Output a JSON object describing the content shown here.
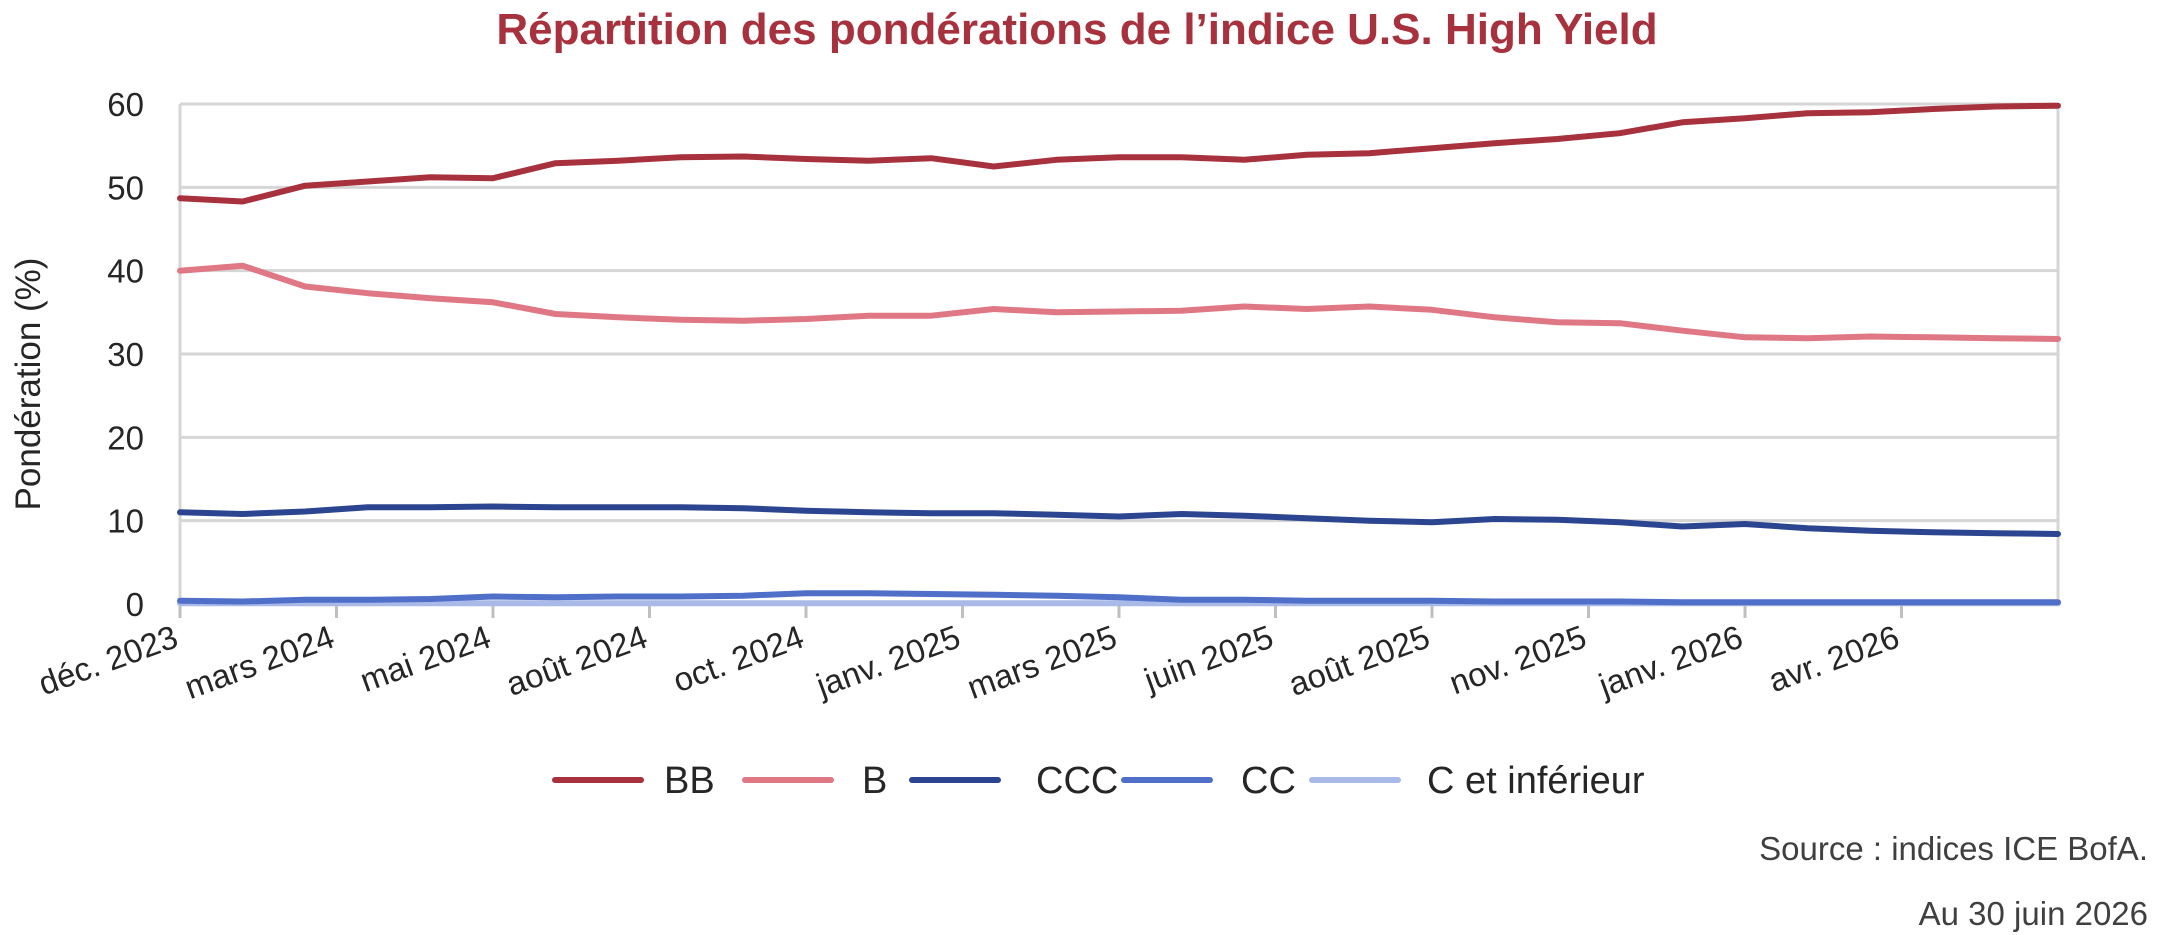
{
  "chart_data": {
    "type": "line",
    "title": "Répartition des pondérations de l’indice U.S. High Yield",
    "ylabel": "Pondération (%)",
    "xlabel": "",
    "ylim": [
      0,
      60
    ],
    "yticks": [
      "0",
      "10",
      "20",
      "30",
      "40",
      "50",
      "60"
    ],
    "x_tick_labels": [
      "déc. 2023",
      "mars 2024",
      "mai 2024",
      "août 2024",
      "oct. 2024",
      "janv. 2025",
      "mars 2025",
      "juin 2025",
      "août 2025",
      "nov. 2025",
      "janv. 2026",
      "avr. 2026"
    ],
    "x": [
      "2023-12",
      "2024-01",
      "2024-02",
      "2024-03",
      "2024-04",
      "2024-05",
      "2024-06",
      "2024-07",
      "2024-08",
      "2024-09",
      "2024-10",
      "2024-11",
      "2024-12",
      "2025-01",
      "2025-02",
      "2025-03",
      "2025-04",
      "2025-05",
      "2025-06",
      "2025-07",
      "2025-08",
      "2025-09",
      "2025-10",
      "2025-11",
      "2025-12",
      "2026-01",
      "2026-02",
      "2026-03",
      "2026-04",
      "2026-05",
      "2026-06"
    ],
    "grid": true,
    "legend_position": "bottom",
    "series": [
      {
        "name": "BB",
        "color": "#a8313e",
        "values": [
          48.7,
          48.3,
          50.2,
          50.7,
          51.2,
          51.1,
          52.9,
          53.2,
          53.6,
          53.7,
          53.4,
          53.2,
          53.5,
          52.5,
          53.3,
          53.6,
          53.6,
          53.3,
          53.9,
          54.1,
          54.7,
          55.3,
          55.8,
          56.5,
          57.8,
          58.3,
          58.9,
          59.0,
          59.4,
          59.7,
          59.8
        ]
      },
      {
        "name": "B",
        "color": "#df7884",
        "values": [
          40.0,
          40.6,
          38.1,
          37.3,
          36.7,
          36.2,
          34.8,
          34.4,
          34.1,
          34.0,
          34.2,
          34.6,
          34.6,
          35.4,
          35.0,
          35.1,
          35.2,
          35.7,
          35.4,
          35.7,
          35.3,
          34.4,
          33.8,
          33.7,
          32.8,
          32.0,
          31.9,
          32.1,
          32.0,
          31.9,
          31.8
        ]
      },
      {
        "name": "CCC",
        "color": "#2c4590",
        "values": [
          11.0,
          10.8,
          11.1,
          11.6,
          11.6,
          11.7,
          11.6,
          11.6,
          11.6,
          11.5,
          11.2,
          11.0,
          10.9,
          10.9,
          10.7,
          10.5,
          10.8,
          10.6,
          10.3,
          10.0,
          9.8,
          10.2,
          10.1,
          9.8,
          9.3,
          9.6,
          9.1,
          8.8,
          8.6,
          8.5,
          8.4
        ]
      },
      {
        "name": "CC",
        "color": "#4f6fc8",
        "values": [
          0.4,
          0.3,
          0.5,
          0.5,
          0.6,
          0.9,
          0.8,
          0.9,
          0.9,
          1.0,
          1.3,
          1.3,
          1.2,
          1.1,
          1.0,
          0.8,
          0.5,
          0.5,
          0.4,
          0.4,
          0.4,
          0.3,
          0.3,
          0.3,
          0.2,
          0.2,
          0.2,
          0.2,
          0.2,
          0.2,
          0.2
        ]
      },
      {
        "name": "C et inférieur",
        "color": "#a9b9e8",
        "values": [
          0.1,
          0.1,
          0.1,
          0.1,
          0.1,
          0.1,
          0.1,
          0.1,
          0.1,
          0.1,
          0.1,
          0.1,
          0.1,
          0.1,
          0.1,
          0.1,
          0.1,
          0.1,
          0.1,
          0.1,
          0.1,
          0.1,
          0.1,
          0.1,
          0.1,
          0.1,
          0.1,
          0.1,
          0.1,
          0.1,
          0.1
        ]
      }
    ]
  },
  "footer": {
    "source": "Source : indices ICE BofA.",
    "date": "Au 30 juin 2026"
  }
}
